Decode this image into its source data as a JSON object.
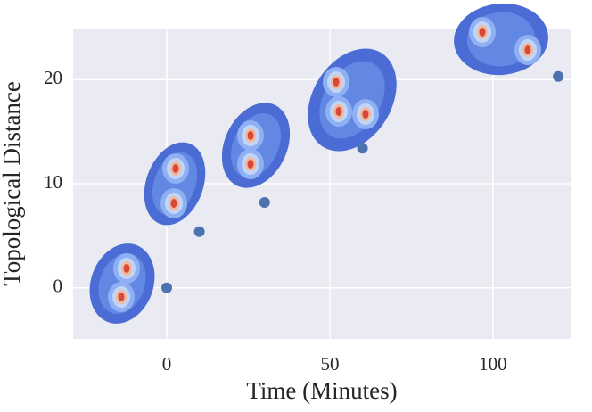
{
  "chart_data": {
    "type": "scatter",
    "x_label": "Time (Minutes)",
    "y_label": "Topological Distance",
    "x": [
      0,
      10,
      30,
      60,
      120
    ],
    "values": [
      0,
      5.4,
      8.2,
      13.4,
      20.3
    ],
    "color": "#4c72b0",
    "xlim": [
      -28.7,
      123.8
    ],
    "ylim": [
      -4.9,
      24.9
    ],
    "xticks": [
      0,
      50,
      100
    ],
    "yticks": [
      0,
      10,
      20
    ],
    "grid": true
  }
}
